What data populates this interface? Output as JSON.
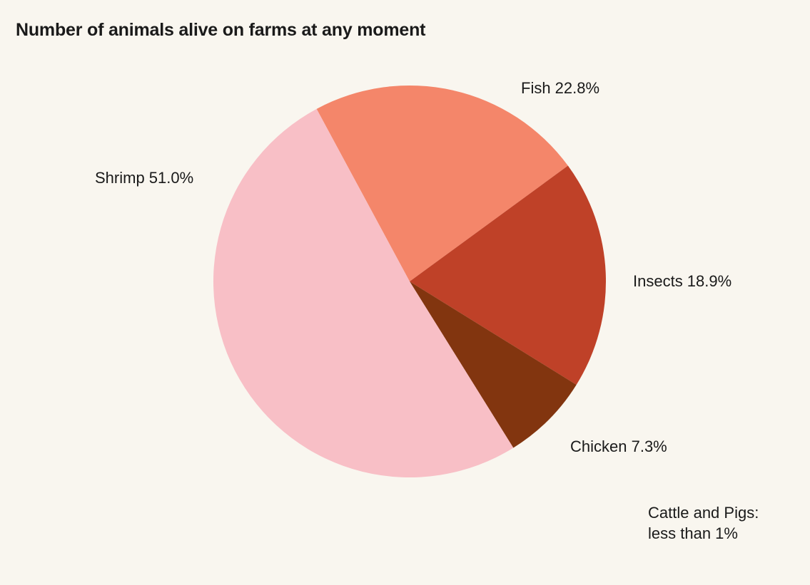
{
  "chart_data": {
    "type": "pie",
    "title": "Number of animals alive on farms at any moment",
    "slices": [
      {
        "name": "Fish",
        "value": 22.8,
        "label": "Fish 22.8%",
        "color": "#f4866a"
      },
      {
        "name": "Insects",
        "value": 18.9,
        "label": "Insects 18.9%",
        "color": "#bf4128"
      },
      {
        "name": "Chicken",
        "value": 7.3,
        "label": "Chicken 7.3%",
        "color": "#82350f"
      },
      {
        "name": "Shrimp",
        "value": 51.0,
        "label": "Shrimp 51.0%",
        "color": "#f8bfc6"
      }
    ],
    "annotation": {
      "line1": "Cattle and Pigs:",
      "line2": "less than 1%"
    }
  }
}
